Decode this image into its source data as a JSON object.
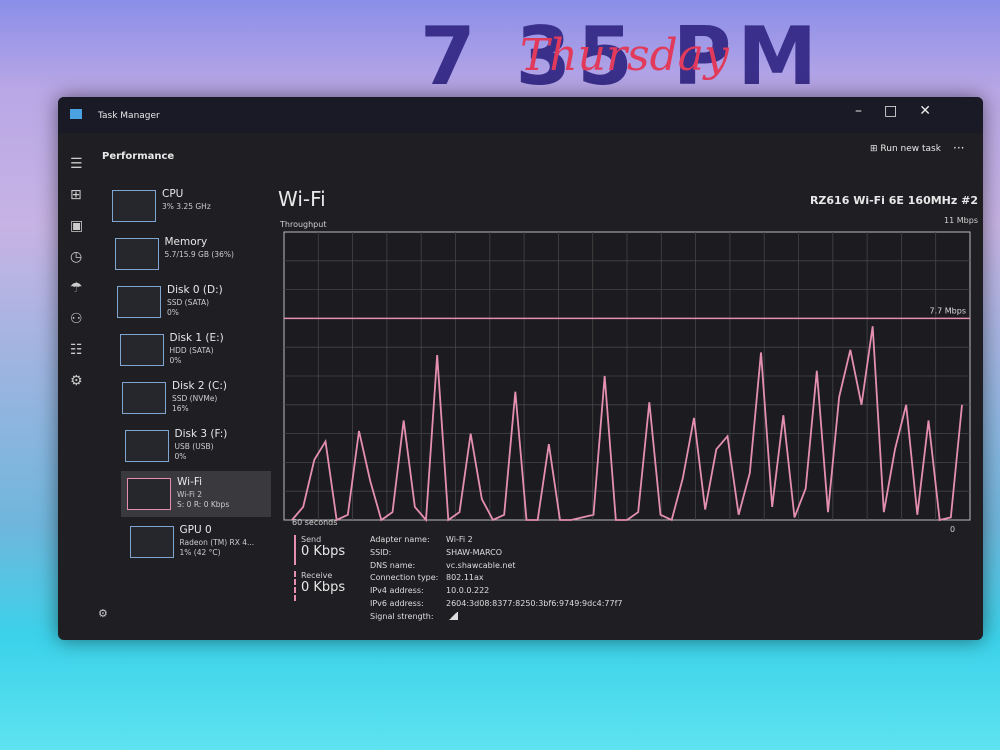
{
  "wallpaper": {
    "clock": "7 35 PM",
    "day": "Thursday"
  },
  "window": {
    "title": "Task Manager",
    "header": "Performance",
    "run_new_task": "Run new task"
  },
  "sidebar": [
    {
      "name": "CPU",
      "lines": [
        "3% 3.25 GHz"
      ]
    },
    {
      "name": "Memory",
      "lines": [
        "5.7/15.9 GB (36%)"
      ]
    },
    {
      "name": "Disk 0 (D:)",
      "lines": [
        "SSD (SATA)",
        "0%"
      ]
    },
    {
      "name": "Disk 1 (E:)",
      "lines": [
        "HDD (SATA)",
        "0%"
      ]
    },
    {
      "name": "Disk 2 (C:)",
      "lines": [
        "SSD (NVMe)",
        "16%"
      ]
    },
    {
      "name": "Disk 3 (F:)",
      "lines": [
        "USB (USB)",
        "0%"
      ]
    },
    {
      "name": "Wi-Fi",
      "lines": [
        "Wi-Fi 2",
        "S: 0 R: 0 Kbps"
      ]
    },
    {
      "name": "GPU 0",
      "lines": [
        "Radeon (TM) RX 4...",
        "1% (42 °C)"
      ]
    }
  ],
  "panel": {
    "title": "Wi-Fi",
    "adapter": "RZ616 Wi-Fi 6E 160MHz #2",
    "graph_label": "Throughput",
    "send_label": "Send",
    "send_value": "0 Kbps",
    "receive_label": "Receive",
    "receive_value": "0 Kbps",
    "details": [
      {
        "label": "Adapter name:",
        "value": "Wi-Fi 2"
      },
      {
        "label": "SSID:",
        "value": "SHAW-MARCO"
      },
      {
        "label": "DNS name:",
        "value": "vc.shawcable.net"
      },
      {
        "label": "Connection type:",
        "value": "802.11ax"
      },
      {
        "label": "IPv4 address:",
        "value": "10.0.0.222"
      },
      {
        "label": "IPv6 address:",
        "value": "2604:3d08:8377:8250:3bf6:9749:9dc4:77f7"
      },
      {
        "label": "Signal strength:"
      }
    ]
  },
  "chart_data": {
    "type": "line",
    "color": "#e58fb0",
    "ylim": [
      0,
      11
    ],
    "ymax_label": "11 Mbps",
    "ymin_label": "0",
    "reference": {
      "value": 7.7,
      "label": "7.7 Mbps"
    },
    "x_label": "60 seconds",
    "values": [
      0,
      0.5,
      2.3,
      3.0,
      0,
      0.2,
      3.4,
      1.5,
      0,
      0.3,
      3.8,
      0.5,
      0,
      6.3,
      0,
      0.3,
      3.3,
      0.8,
      0,
      0.2,
      4.9,
      0,
      0,
      2.9,
      0,
      0,
      0.1,
      0.2,
      5.5,
      0,
      0,
      0.3,
      4.5,
      0.2,
      0,
      1.6,
      3.9,
      0.4,
      2.7,
      3.2,
      0.2,
      1.8,
      6.4,
      0.5,
      4.0,
      0.1,
      1.2,
      5.7,
      0.3,
      4.7,
      6.5,
      4.4,
      7.4,
      0.3,
      2.7,
      4.4,
      0.2,
      3.8,
      0,
      0.1,
      4.4
    ]
  }
}
